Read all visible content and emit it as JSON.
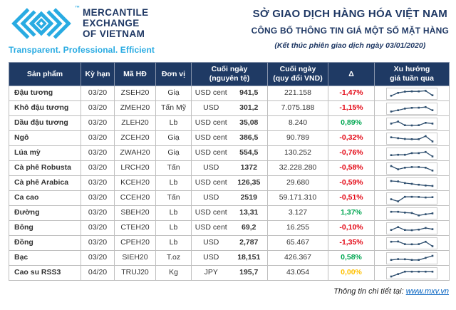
{
  "brand": {
    "tm": "™",
    "name_line1": "MERCANTILE",
    "name_line2": "EXCHANGE",
    "name_line3": "OF VIETNAM",
    "tagline": "Transparent. Professional. Efficient"
  },
  "header": {
    "title": "SỞ GIAO DỊCH HÀNG HÓA VIỆT NAM",
    "subtitle": "CÔNG BỐ THÔNG TIN GIÁ MỘT SỐ MẶT HÀNG",
    "session_note": "(Kết thúc phiên giao dịch ngày 03/01/2020)"
  },
  "table": {
    "columns": {
      "product": "Sản phẩm",
      "term": "Kỳ hạn",
      "code": "Mã HĐ",
      "unit": "Đơn vị",
      "close_native": "Cuối ngày\n(nguyên tệ)",
      "close_vnd": "Cuối ngày\n(quy đổi VND)",
      "delta": "Δ",
      "trend": "Xu hướng\ngiá tuần qua"
    },
    "rows": [
      {
        "product": "Đậu tương",
        "term": "03/20",
        "code": "ZSEH20",
        "unit": "Giạ",
        "currency": "USD cent",
        "close_native": "941,5",
        "close_vnd": "221.158",
        "delta": "-1,47%",
        "trend": [
          2.5,
          6,
          7.5,
          7.8,
          7.8,
          8.5,
          3
        ]
      },
      {
        "product": "Khô đậu tương",
        "term": "03/20",
        "code": "ZMEH20",
        "unit": "Tấn Mỹ",
        "currency": "USD",
        "close_native": "301,2",
        "close_vnd": "7.075.188",
        "delta": "-1,15%",
        "trend": [
          1.5,
          3,
          5,
          6,
          6.2,
          7,
          3
        ]
      },
      {
        "product": "Dầu đậu tương",
        "term": "03/20",
        "code": "ZLEH20",
        "unit": "Lb",
        "currency": "USD cent",
        "close_native": "35,08",
        "close_vnd": "8.240",
        "delta": "0,89%",
        "trend": [
          5,
          7.5,
          3,
          2.8,
          3,
          6,
          5
        ]
      },
      {
        "product": "Ngô",
        "term": "03/20",
        "code": "ZCEH20",
        "unit": "Giạ",
        "currency": "USD cent",
        "close_native": "386,5",
        "close_vnd": "90.789",
        "delta": "-0,32%",
        "trend": [
          6.5,
          5.5,
          4.5,
          4.3,
          4.3,
          8,
          1.5
        ]
      },
      {
        "product": "Lúa mỳ",
        "term": "03/20",
        "code": "ZWAH20",
        "unit": "Giạ",
        "currency": "USD cent",
        "close_native": "554,5",
        "close_vnd": "130.252",
        "delta": "-0,76%",
        "trend": [
          3,
          3.5,
          3.5,
          5.5,
          5.5,
          7,
          1.5
        ]
      },
      {
        "product": "Cà phê Robusta",
        "term": "03/20",
        "code": "LRCH20",
        "unit": "Tấn",
        "currency": "USD",
        "close_native": "1372",
        "close_vnd": "32.228.280",
        "delta": "-0,58%",
        "trend": [
          8,
          4,
          6,
          6.8,
          6.8,
          6,
          2.5
        ]
      },
      {
        "product": "Cà phê Arabica",
        "term": "03/20",
        "code": "KCEH20",
        "unit": "Lb",
        "currency": "USD cent",
        "close_native": "126,35",
        "close_vnd": "29.680",
        "delta": "-0,59%",
        "trend": [
          8,
          7.5,
          5.5,
          4.5,
          3.5,
          2.5,
          2
        ]
      },
      {
        "product": "Ca cao",
        "term": "03/20",
        "code": "CCEH20",
        "unit": "Tấn",
        "currency": "USD",
        "close_native": "2519",
        "close_vnd": "59.171.310",
        "delta": "-0,51%",
        "trend": [
          4,
          1.5,
          7,
          7,
          6.8,
          6.2,
          6.5
        ]
      },
      {
        "product": "Đường",
        "term": "03/20",
        "code": "SBEH20",
        "unit": "Lb",
        "currency": "USD cent",
        "close_native": "13,31",
        "close_vnd": "3.127",
        "delta": "1,37%",
        "trend": [
          7,
          7,
          6,
          5.5,
          2.5,
          4,
          5
        ]
      },
      {
        "product": "Bông",
        "term": "03/20",
        "code": "CTEH20",
        "unit": "Lb",
        "currency": "USD cent",
        "close_native": "69,2",
        "close_vnd": "16.255",
        "delta": "-0,10%",
        "trend": [
          3,
          6.5,
          3,
          2.8,
          3.5,
          5.5,
          4
        ]
      },
      {
        "product": "Đồng",
        "term": "03/20",
        "code": "CPEH20",
        "unit": "Lb",
        "currency": "USD",
        "close_native": "2,787",
        "close_vnd": "65.467",
        "delta": "-1,35%",
        "trend": [
          7,
          7.2,
          4,
          3.8,
          4,
          7,
          1.5
        ]
      },
      {
        "product": "Bạc",
        "term": "03/20",
        "code": "SIEH20",
        "unit": "T.oz",
        "currency": "USD",
        "close_native": "18,151",
        "close_vnd": "426.367",
        "delta": "0,58%",
        "trend": [
          3,
          4,
          3.8,
          3,
          3,
          5.5,
          8
        ]
      },
      {
        "product": "Cao su RSS3",
        "term": "04/20",
        "code": "TRUJ20",
        "unit": "Kg",
        "currency": "JPY",
        "close_native": "195,7",
        "close_vnd": "43.054",
        "delta": "0,00%",
        "trend": [
          1,
          4,
          7,
          7,
          7,
          7,
          7
        ]
      }
    ]
  },
  "footer": {
    "note": "Thông tin chi tiết tại: ",
    "link": "www.mxv.vn"
  },
  "colors": {
    "brand_blue": "#29abe2",
    "navy": "#1f3864",
    "header_bg": "#1f3a64",
    "delta_negative": "#e30613",
    "delta_positive": "#00a651",
    "delta_zero": "#ffc000",
    "sparkline": "#2f4f6f",
    "link_blue": "#0563c1"
  }
}
